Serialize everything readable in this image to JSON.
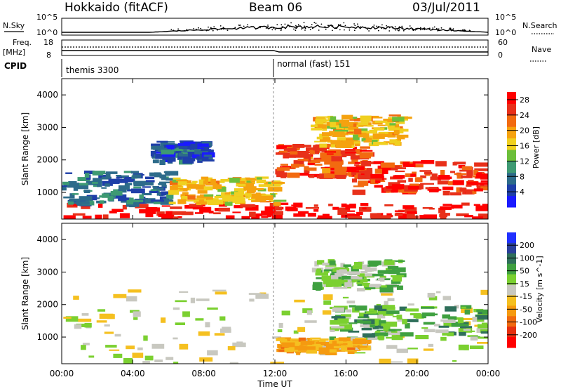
{
  "header": {
    "station": "Hokkaido (fitACF)",
    "beam": "Beam 06",
    "date": "03/Jul/2011"
  },
  "status_panels": {
    "nsky_label": "N.Sky",
    "nsky_tick_top": "10^5",
    "nsky_tick_bottom": "10^0",
    "nsearch_label": "N.Search",
    "nsearch_tick_top": "10^5",
    "nsearch_tick_bottom": "10^0",
    "freq_label": "Freq.",
    "freq_unit": "[MHz]",
    "freq_tick_top": "18",
    "freq_tick_bottom": "8",
    "nave_label": "Nave",
    "nave_tick_top": "60",
    "nave_tick_bottom": "0",
    "cpid_label": "CPID",
    "cpid_segments": [
      {
        "label": "themis 3300",
        "start_hour": 0
      },
      {
        "label": "normal (fast) 151",
        "start_hour": 12
      }
    ]
  },
  "colors": {
    "power_scale": [
      "#1a1aff",
      "#1f3fa8",
      "#2d6b8a",
      "#3e9a73",
      "#6cbf3a",
      "#f0d020",
      "#f5a20f",
      "#f26a10",
      "#e8301a",
      "#ff0000"
    ],
    "velocity_scale": [
      "#2030ff",
      "#2a3f9a",
      "#2f6f5a",
      "#3fa040",
      "#7bd030",
      "#c8c8c0",
      "#f5c020",
      "#f59a10",
      "#f06a10",
      "#e63010",
      "#ff0000"
    ]
  },
  "chart_data": [
    {
      "type": "heatmap",
      "name": "power",
      "xlabel": "",
      "ylabel": "Slant Range [km]",
      "xlim": [
        0,
        24
      ],
      "ylim": [
        180,
        4500
      ],
      "yticks": [
        1000,
        2000,
        3000,
        4000
      ],
      "colorbar_label": "Power [dB]",
      "colorbar_ticks": [
        4,
        8,
        12,
        16,
        20,
        24,
        28
      ],
      "colorbar_range": [
        0,
        30
      ],
      "regions": [
        {
          "x": [
            0,
            24
          ],
          "y": [
            200,
            700
          ],
          "value": 28
        },
        {
          "x": [
            0,
            6
          ],
          "y": [
            700,
            1700
          ],
          "value": 7
        },
        {
          "x": [
            6,
            12
          ],
          "y": [
            700,
            1500
          ],
          "value": 18
        },
        {
          "x": [
            12,
            17
          ],
          "y": [
            1500,
            2500
          ],
          "value": 24
        },
        {
          "x": [
            16,
            24
          ],
          "y": [
            1000,
            2000
          ],
          "value": 26
        },
        {
          "x": [
            14,
            19
          ],
          "y": [
            2500,
            3400
          ],
          "value": 18
        },
        {
          "x": [
            5,
            8
          ],
          "y": [
            2000,
            2600
          ],
          "value": 6
        }
      ]
    },
    {
      "type": "heatmap",
      "name": "velocity",
      "xlabel": "Time UT",
      "ylabel": "Slant Range [km]",
      "xlim": [
        0,
        24
      ],
      "ylim": [
        180,
        4500
      ],
      "xticks": [
        "00:00",
        "04:00",
        "08:00",
        "12:00",
        "16:00",
        "20:00",
        "00:00"
      ],
      "yticks": [
        1000,
        2000,
        3000,
        4000
      ],
      "colorbar_label": "Velocity [m s^-1]",
      "colorbar_ticks": [
        200,
        100,
        50,
        15,
        -15,
        -50,
        -100,
        -200
      ],
      "regions": [
        {
          "x": [
            0,
            24
          ],
          "y": [
            200,
            2500
          ],
          "value": 0
        },
        {
          "x": [
            15,
            24
          ],
          "y": [
            1000,
            2000
          ],
          "value": 60
        },
        {
          "x": [
            14,
            19
          ],
          "y": [
            2500,
            3400
          ],
          "value": 40
        },
        {
          "x": [
            12,
            17
          ],
          "y": [
            600,
            1000
          ],
          "value": -60
        }
      ]
    }
  ]
}
